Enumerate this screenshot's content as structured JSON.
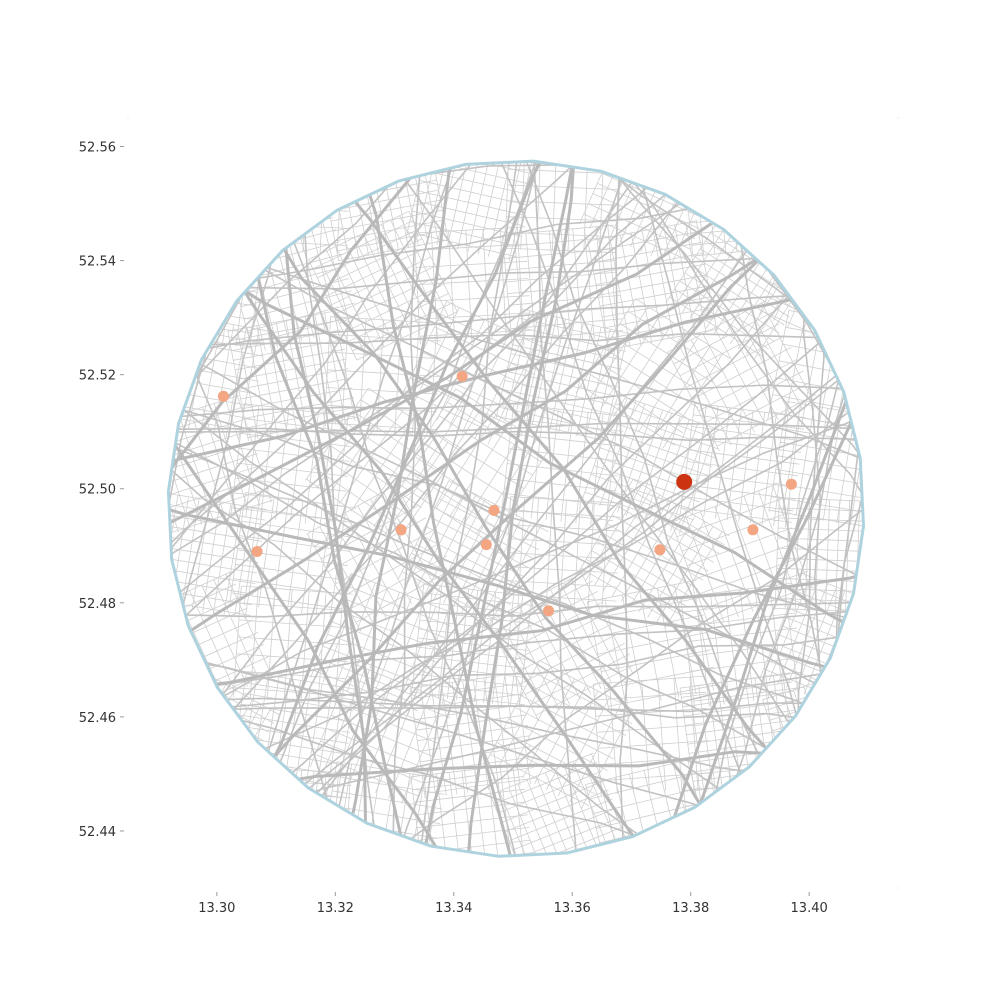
{
  "map": {
    "xlim": [
      13.285,
      13.415
    ],
    "ylim": [
      52.43,
      52.565
    ],
    "x_ticks": [
      {
        "value": 13.3,
        "label": "13.30"
      },
      {
        "value": 13.32,
        "label": "13.32"
      },
      {
        "value": 13.34,
        "label": "13.34"
      },
      {
        "value": 13.36,
        "label": "13.36"
      },
      {
        "value": 13.38,
        "label": "13.38"
      },
      {
        "value": 13.4,
        "label": "13.40"
      }
    ],
    "y_ticks": [
      {
        "value": 52.56,
        "label": "52.56"
      },
      {
        "value": 52.54,
        "label": "52.54"
      },
      {
        "value": 52.52,
        "label": "52.52"
      },
      {
        "value": 52.5,
        "label": "52.50"
      },
      {
        "value": 52.48,
        "label": "52.48"
      },
      {
        "value": 52.46,
        "label": "52.46"
      },
      {
        "value": 52.44,
        "label": "52.44"
      }
    ],
    "center": {
      "lon": 13.3505,
      "lat": 52.4965
    },
    "boundary_color": "#aed3df",
    "street_color": "#b9b9b9",
    "points": [
      {
        "lon": 13.3789,
        "lat": 52.5012,
        "highlight": true,
        "color": "#cc3311"
      },
      {
        "lon": 13.3011,
        "lat": 52.5162,
        "highlight": false,
        "color": "#f4a582"
      },
      {
        "lon": 13.3414,
        "lat": 52.5197,
        "highlight": false,
        "color": "#f4a582"
      },
      {
        "lon": 13.397,
        "lat": 52.5008,
        "highlight": false,
        "color": "#f4a582"
      },
      {
        "lon": 13.3468,
        "lat": 52.4962,
        "highlight": false,
        "color": "#f4a582"
      },
      {
        "lon": 13.3311,
        "lat": 52.4928,
        "highlight": false,
        "color": "#f4a582"
      },
      {
        "lon": 13.3455,
        "lat": 52.4902,
        "highlight": false,
        "color": "#f4a582"
      },
      {
        "lon": 13.3068,
        "lat": 52.489,
        "highlight": false,
        "color": "#f4a582"
      },
      {
        "lon": 13.3748,
        "lat": 52.4893,
        "highlight": false,
        "color": "#f4a582"
      },
      {
        "lon": 13.3905,
        "lat": 52.4928,
        "highlight": false,
        "color": "#f4a582"
      },
      {
        "lon": 13.356,
        "lat": 52.4786,
        "highlight": false,
        "color": "#f4a582"
      }
    ]
  }
}
